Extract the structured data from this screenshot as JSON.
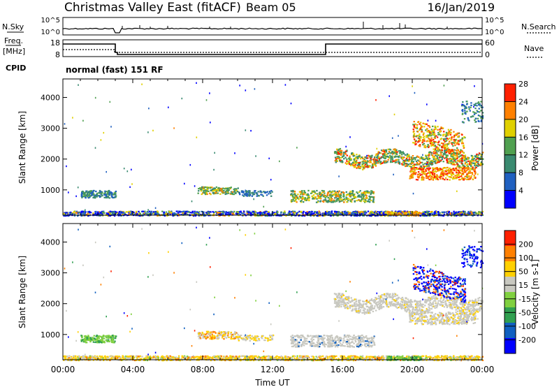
{
  "header": {
    "title": "Christmas Valley East (fitACF)",
    "beam": "Beam 05",
    "date": "16/Jan/2019"
  },
  "top_panels": {
    "nsky_label": "N.Sky",
    "nsky_ticks": [
      "10^5",
      "10^0"
    ],
    "nsearch_label": "N.Search",
    "nsearch_ticks": [
      "10^5",
      "10^0"
    ],
    "freq_label_1": "Freq.",
    "freq_label_2": "[MHz]",
    "freq_ticks": [
      "18",
      "8"
    ],
    "nave_label": "Nave",
    "nave_ticks": [
      "60",
      "0"
    ],
    "cpid_label": "CPID",
    "cpid_text": "normal (fast) 151 RF"
  },
  "chart_data": [
    {
      "type": "heatmap",
      "name": "power-panel",
      "xlabel": "",
      "ylabel": "Slant Range [km]",
      "x_range_hours": [
        0,
        24
      ],
      "ylim": [
        180,
        4600
      ],
      "yticks": [
        1000,
        2000,
        3000,
        4000
      ],
      "colorbar_label": "Power [dB]",
      "colorbar_ticks": [
        "4",
        "8",
        "12",
        "16",
        "20",
        "24",
        "28"
      ],
      "colorbar_range": [
        0,
        32
      ],
      "colors": [
        "#0000ff",
        "#2060c0",
        "#3a8a70",
        "#50a050",
        "#e0d000",
        "#ff8000",
        "#ff2000"
      ]
    },
    {
      "type": "heatmap",
      "name": "velocity-panel",
      "xlabel": "Time UT",
      "ylabel": "Slant Range [km]",
      "x_range_hours": [
        0,
        24
      ],
      "xticks": [
        "00:00",
        "04:00",
        "08:00",
        "12:00",
        "16:00",
        "20:00",
        "00:00"
      ],
      "ylim": [
        180,
        4600
      ],
      "yticks": [
        1000,
        2000,
        3000,
        4000
      ],
      "colorbar_label": "Velocity [m s-1]",
      "colorbar_ticks": [
        "200",
        "100",
        "50",
        "15",
        "-15",
        "-50",
        "-100",
        "-200"
      ],
      "colors": [
        "#0000ff",
        "#1060c0",
        "#30a050",
        "#80d040",
        "#c8c8c0",
        "#ffd000",
        "#ff8000",
        "#ff2000"
      ]
    }
  ]
}
